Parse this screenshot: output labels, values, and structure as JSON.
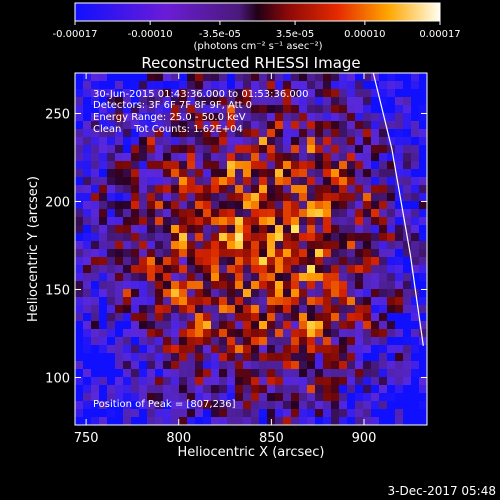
{
  "colorbar": {
    "tick_labels": [
      "-0.00017",
      "-0.00010",
      "-3.5e-05",
      "3.5e-05",
      "0.00010",
      "0.00017"
    ],
    "tick_values": [
      -0.00017,
      -0.0001,
      -3.5e-05,
      3.5e-05,
      0.0001,
      0.00017
    ],
    "range": [
      -0.00017,
      0.00017
    ],
    "unit_label": "(photons cm⁻² s⁻¹ asec⁻²)"
  },
  "chart_data": {
    "type": "heatmap",
    "title": "Reconstructed RHESSI Image",
    "xlabel": "Heliocentric X (arcsec)",
    "ylabel": "Heliocentric Y (arcsec)",
    "xlim": [
      744,
      934
    ],
    "ylim": [
      73,
      273
    ],
    "x_ticks": [
      750,
      800,
      850,
      900
    ],
    "y_ticks": [
      100,
      150,
      200,
      250
    ],
    "annotations": [
      "30-Jun-2015 01:43:36.000 to 01:53:36.000",
      "Detectors: 3F 6F 7F 8F 9F, Att 0",
      "Energy Range: 25.0 - 50.0 keV",
      "Clean    Tot Counts: 1.62E+04"
    ],
    "peak_label": "Position of Peak = [807,236]",
    "peak": [
      807,
      236
    ],
    "limb": [
      [
        905,
        273
      ],
      [
        915,
        230
      ],
      [
        925,
        170
      ],
      [
        932,
        118
      ]
    ]
  },
  "footer": {
    "timestamp": "3-Dec-2017 05:48"
  },
  "colors": {
    "background": "#000000",
    "text": "#ffffff",
    "limb": "#ffffff"
  }
}
